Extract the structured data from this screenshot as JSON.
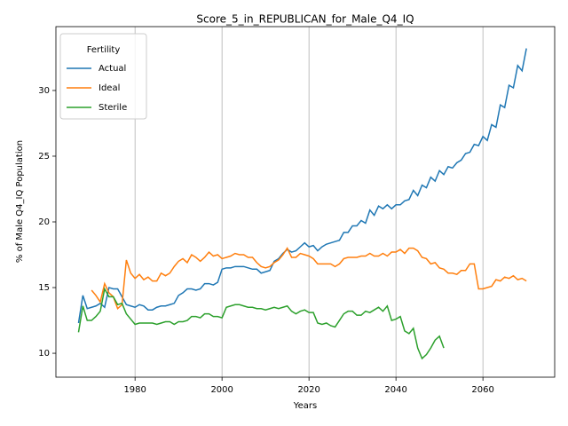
{
  "chart_data": {
    "type": "line",
    "title": "Score_5_in_REPUBLICAN_for_Male_Q4_IQ",
    "xlabel": "Years",
    "ylabel": "% of Male Q4_IQ Population",
    "legend_title": "Fertility",
    "legend": "upper left",
    "grid": "x",
    "xlim": [
      1961.8,
      2076.5
    ],
    "ylim": [
      8.18,
      34.86
    ],
    "xticks": [
      1980,
      2000,
      2020,
      2040,
      2060
    ],
    "yticks": [
      10,
      15,
      20,
      25,
      30
    ],
    "x": [
      1967,
      1968,
      1969,
      1970,
      1971,
      1972,
      1973,
      1974,
      1975,
      1976,
      1977,
      1978,
      1979,
      1980,
      1981,
      1982,
      1983,
      1984,
      1985,
      1986,
      1987,
      1988,
      1989,
      1990,
      1991,
      1992,
      1993,
      1994,
      1995,
      1996,
      1997,
      1998,
      1999,
      2000,
      2001,
      2002,
      2003,
      2004,
      2005,
      2006,
      2007,
      2008,
      2009,
      2010,
      2011,
      2012,
      2013,
      2014,
      2015,
      2016,
      2017,
      2018,
      2019,
      2020,
      2021,
      2022,
      2023,
      2024,
      2025,
      2026,
      2027,
      2028,
      2029,
      2030,
      2031,
      2032,
      2033,
      2034,
      2035,
      2036,
      2037,
      2038,
      2039,
      2040,
      2041,
      2042,
      2043,
      2044,
      2045,
      2046,
      2047,
      2048,
      2049,
      2050,
      2051,
      2052,
      2053,
      2054,
      2055,
      2056,
      2057,
      2058,
      2059,
      2060,
      2061,
      2062,
      2063,
      2064,
      2065,
      2066,
      2067,
      2068,
      2069,
      2070
    ],
    "series": [
      {
        "name": "Actual",
        "color": "#1f77b4",
        "values": [
          12.3,
          14.4,
          13.4,
          13.5,
          13.6,
          13.8,
          13.5,
          15.0,
          14.9,
          14.9,
          14.3,
          13.7,
          13.6,
          13.5,
          13.7,
          13.6,
          13.3,
          13.3,
          13.5,
          13.6,
          13.6,
          13.7,
          13.8,
          14.4,
          14.6,
          14.9,
          14.9,
          14.8,
          14.9,
          15.3,
          15.3,
          15.2,
          15.4,
          16.4,
          16.5,
          16.5,
          16.6,
          16.6,
          16.6,
          16.5,
          16.4,
          16.4,
          16.1,
          16.2,
          16.3,
          17.0,
          17.2,
          17.6,
          17.9,
          17.7,
          17.8,
          18.1,
          18.4,
          18.1,
          18.2,
          17.8,
          18.1,
          18.3,
          18.4,
          18.5,
          18.6,
          19.2,
          19.2,
          19.7,
          19.7,
          20.1,
          19.9,
          20.9,
          20.5,
          21.2,
          21.0,
          21.3,
          21.0,
          21.3,
          21.3,
          21.6,
          21.7,
          22.4,
          22.0,
          22.8,
          22.6,
          23.4,
          23.1,
          23.9,
          23.6,
          24.2,
          24.1,
          24.5,
          24.7,
          25.2,
          25.3,
          25.9,
          25.8,
          26.5,
          26.2,
          27.4,
          27.2,
          28.9,
          28.7,
          30.4,
          30.2,
          31.9,
          31.5,
          33.2
        ]
      },
      {
        "name": "Ideal",
        "color": "#ff7f0e",
        "values": [
          null,
          null,
          null,
          14.8,
          14.4,
          13.9,
          15.3,
          14.6,
          14.3,
          13.4,
          13.7,
          17.1,
          16.1,
          15.7,
          16.0,
          15.6,
          15.8,
          15.5,
          15.5,
          16.1,
          15.9,
          16.1,
          16.6,
          17.0,
          17.2,
          16.9,
          17.5,
          17.3,
          17.0,
          17.3,
          17.7,
          17.4,
          17.5,
          17.2,
          17.3,
          17.4,
          17.6,
          17.5,
          17.5,
          17.3,
          17.3,
          16.9,
          16.6,
          16.5,
          16.6,
          16.9,
          17.1,
          17.5,
          18.0,
          17.3,
          17.3,
          17.6,
          17.5,
          17.4,
          17.2,
          16.8,
          16.8,
          16.8,
          16.8,
          16.6,
          16.8,
          17.2,
          17.3,
          17.3,
          17.3,
          17.4,
          17.4,
          17.6,
          17.4,
          17.4,
          17.6,
          17.4,
          17.7,
          17.7,
          17.9,
          17.6,
          18.0,
          18.0,
          17.8,
          17.3,
          17.2,
          16.8,
          16.9,
          16.5,
          16.4,
          16.1,
          16.1,
          16.0,
          16.3,
          16.3,
          16.8,
          16.8,
          14.9,
          14.9,
          15.0,
          15.1,
          15.6,
          15.5,
          15.8,
          15.7,
          15.9,
          15.6,
          15.7,
          15.5
        ]
      },
      {
        "name": "Sterile",
        "color": "#2ca02c",
        "values": [
          11.6,
          13.6,
          12.5,
          12.5,
          12.8,
          13.2,
          14.9,
          14.3,
          14.3,
          13.7,
          13.8,
          13.0,
          12.6,
          12.2,
          12.3,
          12.3,
          12.3,
          12.3,
          12.2,
          12.3,
          12.4,
          12.4,
          12.2,
          12.4,
          12.4,
          12.5,
          12.8,
          12.8,
          12.7,
          13.0,
          13.0,
          12.8,
          12.8,
          12.7,
          13.5,
          13.6,
          13.7,
          13.7,
          13.6,
          13.5,
          13.5,
          13.4,
          13.4,
          13.3,
          13.4,
          13.5,
          13.4,
          13.5,
          13.6,
          13.2,
          13.0,
          13.2,
          13.3,
          13.1,
          13.1,
          12.3,
          12.2,
          12.3,
          12.1,
          12.0,
          12.5,
          13.0,
          13.2,
          13.2,
          12.9,
          12.9,
          13.2,
          13.1,
          13.3,
          13.5,
          13.2,
          13.6,
          12.5,
          12.6,
          12.8,
          11.7,
          11.5,
          11.9,
          10.4,
          9.6,
          9.9,
          10.4,
          11.0,
          11.3,
          10.4,
          null,
          null,
          null,
          null,
          null,
          null,
          null,
          null,
          null,
          null,
          null,
          null,
          null,
          null,
          null,
          null,
          null,
          null,
          null
        ]
      }
    ]
  }
}
